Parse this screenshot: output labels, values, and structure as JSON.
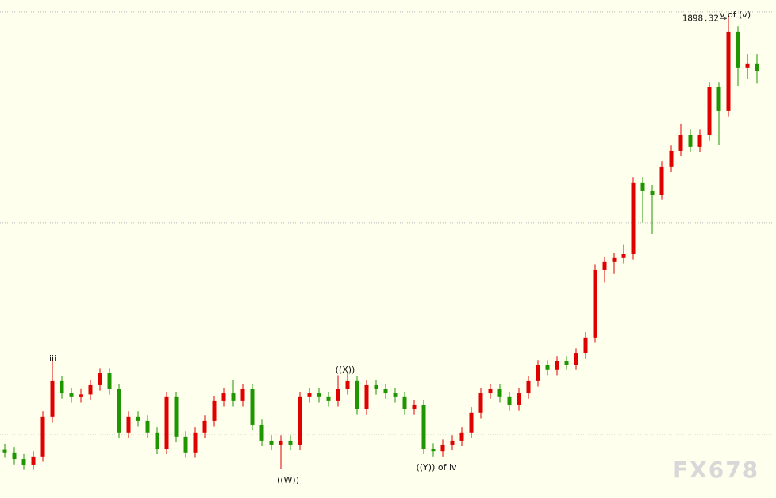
{
  "chart_data": {
    "type": "candlestick",
    "up_color": "#e00000",
    "down_color": "#1e9600",
    "background": "#ffffee",
    "ylim": [
      1669.9,
      1905.6
    ],
    "grid_lines": [
      1700,
      1800,
      1900
    ],
    "grid": true,
    "open": [
      1693.0,
      1691.4,
      1688.3,
      1685.7,
      1689.5,
      1708.3,
      1725.2,
      1719.5,
      1717.7,
      1719.0,
      1723.3,
      1728.9,
      1721.4,
      1700.8,
      1708.3,
      1706.4,
      1700.8,
      1693.2,
      1717.7,
      1698.9,
      1691.4,
      1700.8,
      1706.4,
      1715.8,
      1719.5,
      1715.8,
      1721.4,
      1704.5,
      1697.0,
      1695.1,
      1697.0,
      1695.1,
      1717.7,
      1719.5,
      1717.7,
      1715.8,
      1721.4,
      1725.2,
      1712.0,
      1723.3,
      1721.4,
      1719.5,
      1717.7,
      1712.0,
      1713.9,
      1693.2,
      1692.0,
      1695.1,
      1697.0,
      1700.8,
      1710.2,
      1719.5,
      1721.4,
      1717.7,
      1713.9,
      1719.5,
      1725.2,
      1732.7,
      1730.5,
      1734.6,
      1733.0,
      1738.3,
      1745.9,
      1777.8,
      1781.6,
      1783.5,
      1785.3,
      1819.2,
      1815.4,
      1813.5,
      1826.7,
      1834.2,
      1841.7,
      1836.1,
      1841.7,
      1864.3,
      1853.0,
      1890.6,
      1873.7,
      1875.6
    ],
    "high": [
      1695.5,
      1693.9,
      1690.8,
      1692.0,
      1710.8,
      1735.7,
      1727.7,
      1722.0,
      1721.5,
      1725.8,
      1731.4,
      1731.4,
      1723.9,
      1710.8,
      1710.8,
      1708.9,
      1703.3,
      1720.2,
      1720.2,
      1701.4,
      1703.3,
      1708.9,
      1718.3,
      1722.0,
      1725.9,
      1723.9,
      1723.9,
      1707.0,
      1699.5,
      1699.5,
      1699.5,
      1720.2,
      1722.0,
      1722.0,
      1720.2,
      1728.0,
      1729.0,
      1727.7,
      1725.8,
      1725.8,
      1723.9,
      1722.0,
      1720.2,
      1716.4,
      1716.4,
      1695.7,
      1697.6,
      1699.5,
      1703.3,
      1712.7,
      1722.0,
      1723.9,
      1723.9,
      1720.2,
      1722.0,
      1727.7,
      1735.2,
      1735.2,
      1737.1,
      1737.1,
      1740.8,
      1748.4,
      1780.3,
      1784.1,
      1786.0,
      1790.0,
      1821.7,
      1821.7,
      1818.0,
      1829.2,
      1836.7,
      1847.0,
      1844.2,
      1844.2,
      1866.8,
      1866.8,
      1898.32,
      1893.1,
      1880.0,
      1880.0
    ],
    "low": [
      1688.9,
      1685.8,
      1683.2,
      1683.2,
      1687.0,
      1705.8,
      1717.0,
      1715.2,
      1715.2,
      1716.5,
      1720.8,
      1718.9,
      1698.3,
      1698.3,
      1703.9,
      1698.3,
      1690.7,
      1690.7,
      1696.4,
      1688.9,
      1688.9,
      1698.3,
      1703.9,
      1713.3,
      1713.3,
      1713.3,
      1702.0,
      1694.5,
      1692.6,
      1683.8,
      1692.6,
      1692.6,
      1715.2,
      1715.2,
      1713.3,
      1713.3,
      1718.9,
      1709.5,
      1709.5,
      1718.9,
      1717.0,
      1715.2,
      1709.5,
      1709.5,
      1690.7,
      1689.5,
      1689.5,
      1692.6,
      1694.5,
      1698.3,
      1707.7,
      1717.0,
      1715.2,
      1711.4,
      1711.4,
      1717.0,
      1722.7,
      1728.0,
      1728.0,
      1730.5,
      1730.5,
      1735.8,
      1743.4,
      1772.0,
      1776.0,
      1781.0,
      1782.8,
      1800.0,
      1795.0,
      1811.0,
      1824.2,
      1831.7,
      1833.6,
      1833.6,
      1839.2,
      1837.0,
      1850.5,
      1865.0,
      1868.0,
      1866.0
    ],
    "close": [
      1691.4,
      1688.3,
      1685.7,
      1689.5,
      1708.3,
      1725.2,
      1719.5,
      1717.7,
      1719.0,
      1723.3,
      1728.9,
      1721.4,
      1700.8,
      1708.3,
      1706.4,
      1700.8,
      1693.2,
      1717.7,
      1698.9,
      1691.4,
      1700.8,
      1706.4,
      1715.8,
      1719.5,
      1715.8,
      1721.4,
      1704.5,
      1697.0,
      1695.1,
      1697.0,
      1695.1,
      1717.7,
      1719.5,
      1717.7,
      1715.8,
      1721.4,
      1725.2,
      1712.0,
      1723.3,
      1721.4,
      1719.5,
      1717.7,
      1712.0,
      1713.9,
      1693.2,
      1692.0,
      1695.1,
      1697.0,
      1700.8,
      1710.2,
      1719.5,
      1721.4,
      1717.7,
      1713.9,
      1719.5,
      1725.2,
      1732.7,
      1730.5,
      1734.6,
      1733.0,
      1738.3,
      1745.9,
      1777.8,
      1781.6,
      1783.5,
      1785.3,
      1819.2,
      1815.4,
      1813.5,
      1826.7,
      1834.2,
      1841.7,
      1836.1,
      1841.7,
      1864.3,
      1853.0,
      1890.6,
      1873.7,
      1875.6,
      1871.8
    ],
    "annotations": [
      "iii",
      "((W))",
      "((X))",
      "((Y)) of iv",
      "v of (v)"
    ],
    "watermark": "FX678"
  }
}
